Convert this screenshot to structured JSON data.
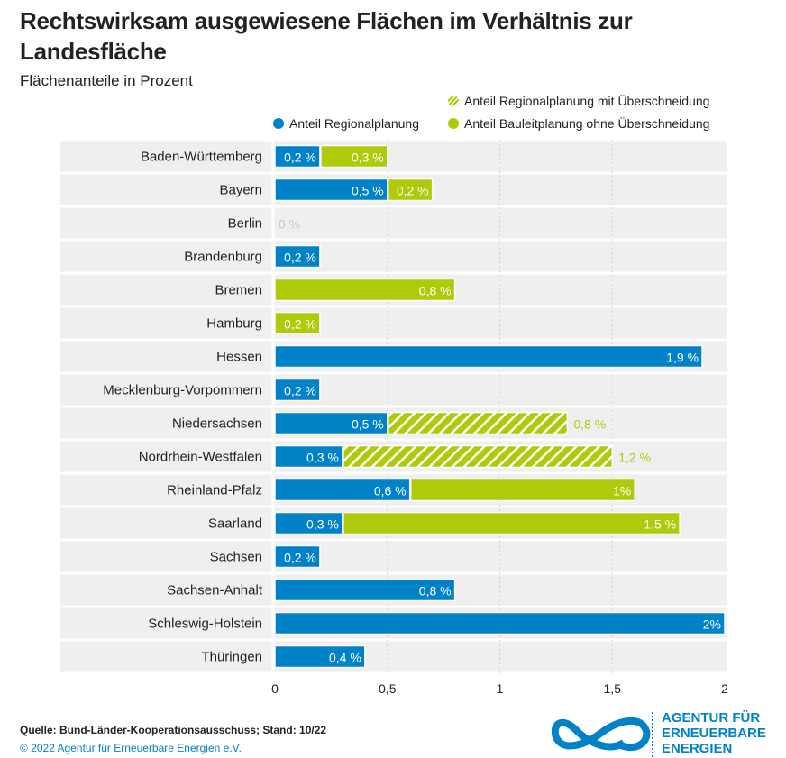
{
  "chart_data": {
    "type": "bar",
    "orientation": "horizontal",
    "stacked": true,
    "title": "Rechtswirksam ausgewiesene Flächen im Verhältnis zur Landesfläche",
    "subtitle": "Flächenanteile in Prozent",
    "categories": [
      "Baden-Württemberg",
      "Bayern",
      "Berlin",
      "Brandenburg",
      "Bremen",
      "Hamburg",
      "Hessen",
      "Mecklenburg-Vorpommern",
      "Niedersachsen",
      "Nordrhein-Westfalen",
      "Rheinland-Pfalz",
      "Saarland",
      "Sachsen",
      "Sachsen-Anhalt",
      "Schleswig-Holstein",
      "Thüringen"
    ],
    "series": [
      {
        "name": "Anteil Regionalplanung",
        "color": "#0082c8",
        "values": [
          0.2,
          0.5,
          0,
          0.2,
          0,
          0,
          1.9,
          0.2,
          0.5,
          0.3,
          0.6,
          0.3,
          0.2,
          0.8,
          2,
          0.4
        ],
        "labels": [
          "0,2 %",
          "0,5 %",
          "0 %",
          "0,2 %",
          "",
          "",
          "1,9 %",
          "0,2 %",
          "0,5 %",
          "0,3 %",
          "0,6 %",
          "0,3 %",
          "0,2 %",
          "0,8 %",
          "2%",
          "0,4 %"
        ]
      },
      {
        "name": "Anteil Regionalplanung mit Überschneidung",
        "color": "#afca0b",
        "pattern": "hatched",
        "values": [
          0,
          0,
          0,
          0,
          0,
          0,
          0,
          0,
          0.8,
          1.2,
          0,
          0,
          0,
          0,
          0,
          0
        ],
        "labels": [
          "",
          "",
          "",
          "",
          "",
          "",
          "",
          "",
          "0,8 %",
          "1,2 %",
          "",
          "",
          "",
          "",
          "",
          ""
        ]
      },
      {
        "name": "Anteil Bauleitplanung ohne Überschneidung",
        "color": "#afca0b",
        "values": [
          0.3,
          0.2,
          0,
          0,
          0.8,
          0.2,
          0,
          0,
          0,
          0,
          1,
          1.5,
          0,
          0,
          0,
          0
        ],
        "labels": [
          "0,3 %",
          "0,2 %",
          "",
          "",
          "0,8 %",
          "0,2 %",
          "",
          "",
          "",
          "",
          "1%",
          "1,5 %",
          "",
          "",
          "",
          ""
        ]
      }
    ],
    "xlim": [
      0,
      2
    ],
    "xticks": [
      "0",
      "0,5",
      "1",
      "1,5",
      "2"
    ],
    "xtick_values": [
      0,
      0.5,
      1,
      1.5,
      2
    ],
    "grid": true,
    "legend_position": "top-right"
  },
  "source": "Quelle: Bund-Länder-Kooperationsausschuss; Stand: 10/22",
  "copyright": "© 2022 Agentur für Erneuerbare Energien e.V.",
  "logo_text": [
    "AGENTUR FÜR",
    "ERNEUERBARE",
    "ENERGIEN"
  ]
}
